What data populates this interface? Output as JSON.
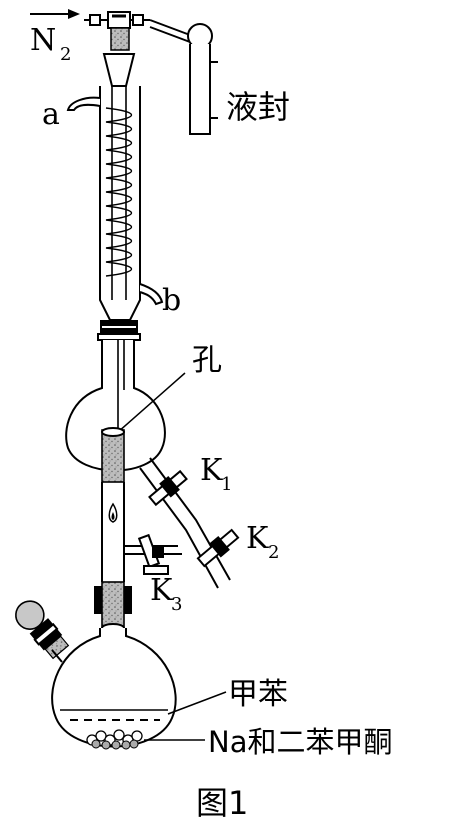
{
  "figure": {
    "caption": "图1",
    "labels": {
      "gas": "N",
      "gas_subscript": "2",
      "inlet_a": "a",
      "outlet_b": "b",
      "liquid_seal": "液封",
      "hole": "孔",
      "valve_k1": "K",
      "valve_k1_sub": "1",
      "valve_k2": "K",
      "valve_k2_sub": "2",
      "valve_k3": "K",
      "valve_k3_sub": "3",
      "solvent": "甲苯",
      "reagents": "Na和二苯甲酮"
    }
  }
}
